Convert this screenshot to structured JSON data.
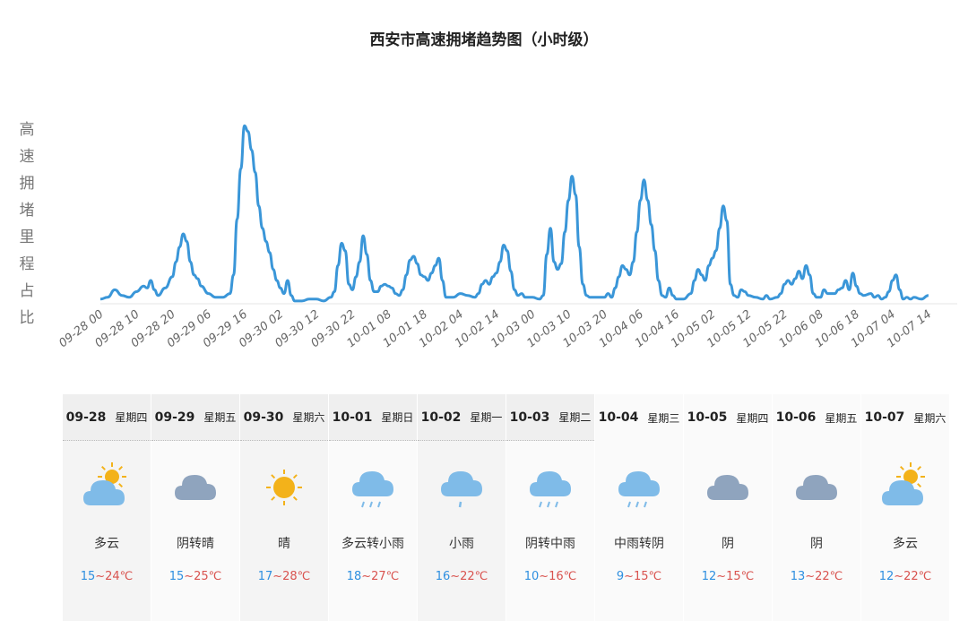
{
  "chart_data": {
    "type": "line",
    "title": "西安市高速拥堵趋势图（小时级）",
    "ylabel": "高速拥堵里程占比",
    "xlabel": "",
    "x_tick_labels": [
      "09-28 00",
      "09-28 10",
      "09-28 20",
      "09-29 06",
      "09-29 16",
      "09-30 02",
      "09-30 12",
      "09-30 22",
      "10-01 08",
      "10-01 18",
      "10-02 04",
      "10-02 14",
      "10-03 00",
      "10-03 10",
      "10-03 20",
      "10-04 06",
      "10-04 16",
      "10-05 02",
      "10-05 12",
      "10-05 22",
      "10-06 08",
      "10-06 18",
      "10-07 04",
      "10-07 14"
    ],
    "x_range_hours": [
      0,
      238
    ],
    "ylim": [
      0,
      100
    ],
    "series": [
      {
        "color": "#3a96d8",
        "points": [
          [
            0,
            2
          ],
          [
            2,
            3
          ],
          [
            4,
            7
          ],
          [
            6,
            4
          ],
          [
            8,
            3
          ],
          [
            10,
            6
          ],
          [
            12,
            9
          ],
          [
            13,
            8
          ],
          [
            14,
            12
          ],
          [
            15,
            7
          ],
          [
            16,
            4
          ],
          [
            18,
            8
          ],
          [
            20,
            14
          ],
          [
            21,
            22
          ],
          [
            22,
            30
          ],
          [
            23,
            37
          ],
          [
            24,
            33
          ],
          [
            25,
            22
          ],
          [
            26,
            15
          ],
          [
            27,
            13
          ],
          [
            28,
            9
          ],
          [
            30,
            5
          ],
          [
            32,
            3
          ],
          [
            34,
            3
          ],
          [
            36,
            5
          ],
          [
            37,
            15
          ],
          [
            38,
            45
          ],
          [
            39,
            72
          ],
          [
            40,
            95
          ],
          [
            41,
            92
          ],
          [
            42,
            82
          ],
          [
            43,
            70
          ],
          [
            44,
            52
          ],
          [
            45,
            40
          ],
          [
            46,
            33
          ],
          [
            47,
            27
          ],
          [
            48,
            18
          ],
          [
            49,
            12
          ],
          [
            50,
            8
          ],
          [
            51,
            5
          ],
          [
            52,
            12
          ],
          [
            53,
            4
          ],
          [
            54,
            1
          ],
          [
            56,
            1
          ],
          [
            58,
            2
          ],
          [
            60,
            2
          ],
          [
            62,
            1
          ],
          [
            64,
            3
          ],
          [
            65,
            6
          ],
          [
            66,
            20
          ],
          [
            67,
            32
          ],
          [
            68,
            28
          ],
          [
            69,
            10
          ],
          [
            70,
            7
          ],
          [
            71,
            14
          ],
          [
            72,
            22
          ],
          [
            73,
            36
          ],
          [
            74,
            26
          ],
          [
            75,
            12
          ],
          [
            76,
            6
          ],
          [
            77,
            6
          ],
          [
            78,
            9
          ],
          [
            79,
            10
          ],
          [
            80,
            9
          ],
          [
            81,
            8
          ],
          [
            82,
            5
          ],
          [
            83,
            4
          ],
          [
            84,
            7
          ],
          [
            85,
            15
          ],
          [
            86,
            23
          ],
          [
            87,
            25
          ],
          [
            88,
            21
          ],
          [
            89,
            15
          ],
          [
            90,
            14
          ],
          [
            91,
            12
          ],
          [
            92,
            16
          ],
          [
            93,
            20
          ],
          [
            94,
            24
          ],
          [
            95,
            12
          ],
          [
            96,
            3
          ],
          [
            98,
            3
          ],
          [
            100,
            5
          ],
          [
            102,
            4
          ],
          [
            104,
            3
          ],
          [
            105,
            5
          ],
          [
            106,
            10
          ],
          [
            107,
            12
          ],
          [
            108,
            10
          ],
          [
            109,
            14
          ],
          [
            110,
            16
          ],
          [
            111,
            22
          ],
          [
            112,
            31
          ],
          [
            113,
            28
          ],
          [
            114,
            17
          ],
          [
            115,
            7
          ],
          [
            116,
            4
          ],
          [
            117,
            5
          ],
          [
            118,
            3
          ],
          [
            120,
            3
          ],
          [
            122,
            2
          ],
          [
            123,
            4
          ],
          [
            124,
            26
          ],
          [
            125,
            40
          ],
          [
            126,
            22
          ],
          [
            127,
            18
          ],
          [
            128,
            21
          ],
          [
            129,
            38
          ],
          [
            130,
            55
          ],
          [
            131,
            68
          ],
          [
            132,
            58
          ],
          [
            133,
            30
          ],
          [
            134,
            10
          ],
          [
            135,
            4
          ],
          [
            136,
            3
          ],
          [
            138,
            3
          ],
          [
            140,
            3
          ],
          [
            141,
            5
          ],
          [
            142,
            3
          ],
          [
            143,
            8
          ],
          [
            144,
            14
          ],
          [
            145,
            20
          ],
          [
            146,
            18
          ],
          [
            147,
            15
          ],
          [
            148,
            22
          ],
          [
            149,
            38
          ],
          [
            150,
            55
          ],
          [
            151,
            66
          ],
          [
            152,
            55
          ],
          [
            153,
            42
          ],
          [
            154,
            28
          ],
          [
            155,
            12
          ],
          [
            156,
            4
          ],
          [
            157,
            3
          ],
          [
            158,
            8
          ],
          [
            159,
            4
          ],
          [
            160,
            2
          ],
          [
            162,
            2
          ],
          [
            164,
            5
          ],
          [
            165,
            12
          ],
          [
            166,
            18
          ],
          [
            167,
            15
          ],
          [
            168,
            12
          ],
          [
            169,
            20
          ],
          [
            170,
            24
          ],
          [
            171,
            28
          ],
          [
            172,
            40
          ],
          [
            173,
            52
          ],
          [
            174,
            44
          ],
          [
            175,
            10
          ],
          [
            176,
            4
          ],
          [
            177,
            3
          ],
          [
            178,
            7
          ],
          [
            179,
            6
          ],
          [
            180,
            4
          ],
          [
            182,
            3
          ],
          [
            184,
            2
          ],
          [
            185,
            4
          ],
          [
            186,
            2
          ],
          [
            188,
            3
          ],
          [
            189,
            5
          ],
          [
            190,
            10
          ],
          [
            191,
            12
          ],
          [
            192,
            10
          ],
          [
            193,
            13
          ],
          [
            194,
            17
          ],
          [
            195,
            13
          ],
          [
            196,
            20
          ],
          [
            197,
            15
          ],
          [
            198,
            5
          ],
          [
            199,
            3
          ],
          [
            200,
            3
          ],
          [
            201,
            7
          ],
          [
            202,
            5
          ],
          [
            204,
            5
          ],
          [
            205,
            7
          ],
          [
            206,
            8
          ],
          [
            207,
            12
          ],
          [
            208,
            7
          ],
          [
            209,
            16
          ],
          [
            210,
            9
          ],
          [
            211,
            5
          ],
          [
            212,
            4
          ],
          [
            214,
            5
          ],
          [
            215,
            3
          ],
          [
            216,
            4
          ],
          [
            217,
            2
          ],
          [
            218,
            3
          ],
          [
            219,
            6
          ],
          [
            220,
            12
          ],
          [
            221,
            15
          ],
          [
            222,
            7
          ],
          [
            223,
            2
          ],
          [
            224,
            3
          ],
          [
            225,
            2
          ],
          [
            226,
            3
          ],
          [
            228,
            2
          ],
          [
            230,
            4
          ]
        ]
      }
    ]
  },
  "forecast": [
    {
      "date": "09-28",
      "weekday": "星期四",
      "icon": "partly-cloudy-icon",
      "condition": "多云",
      "low": "15",
      "sep": "~",
      "high": "24℃"
    },
    {
      "date": "09-29",
      "weekday": "星期五",
      "icon": "cloudy-icon",
      "condition": "阴转晴",
      "low": "15",
      "sep": "~",
      "high": "25℃"
    },
    {
      "date": "09-30",
      "weekday": "星期六",
      "icon": "sunny-icon",
      "condition": "晴",
      "low": "17",
      "sep": "~",
      "high": "28℃"
    },
    {
      "date": "10-01",
      "weekday": "星期日",
      "icon": "rain-icon",
      "condition": "多云转小雨",
      "low": "18",
      "sep": "~",
      "high": "27℃"
    },
    {
      "date": "10-02",
      "weekday": "星期一",
      "icon": "light-rain-icon",
      "condition": "小雨",
      "low": "16",
      "sep": "~",
      "high": "22℃"
    },
    {
      "date": "10-03",
      "weekday": "星期二",
      "icon": "rain-icon",
      "condition": "阴转中雨",
      "low": "10",
      "sep": "~",
      "high": "16℃"
    },
    {
      "date": "10-04",
      "weekday": "星期三",
      "icon": "rain-icon",
      "condition": "中雨转阴",
      "low": "9",
      "sep": "~",
      "high": "15℃"
    },
    {
      "date": "10-05",
      "weekday": "星期四",
      "icon": "cloudy-icon",
      "condition": "阴",
      "low": "12",
      "sep": "~",
      "high": "15℃"
    },
    {
      "date": "10-06",
      "weekday": "星期五",
      "icon": "cloudy-icon",
      "condition": "阴",
      "low": "13",
      "sep": "~",
      "high": "22℃"
    },
    {
      "date": "10-07",
      "weekday": "星期六",
      "icon": "partly-cloudy-icon",
      "condition": "多云",
      "low": "12",
      "sep": "~",
      "high": "22℃"
    }
  ],
  "colors": {
    "line": "#3a96d8",
    "temp_low": "#2e8fe0",
    "temp_high": "#d9534f",
    "cloud_blue": "#7fbbe8",
    "cloud_grey": "#8fa4be",
    "sun": "#f3b21a"
  }
}
